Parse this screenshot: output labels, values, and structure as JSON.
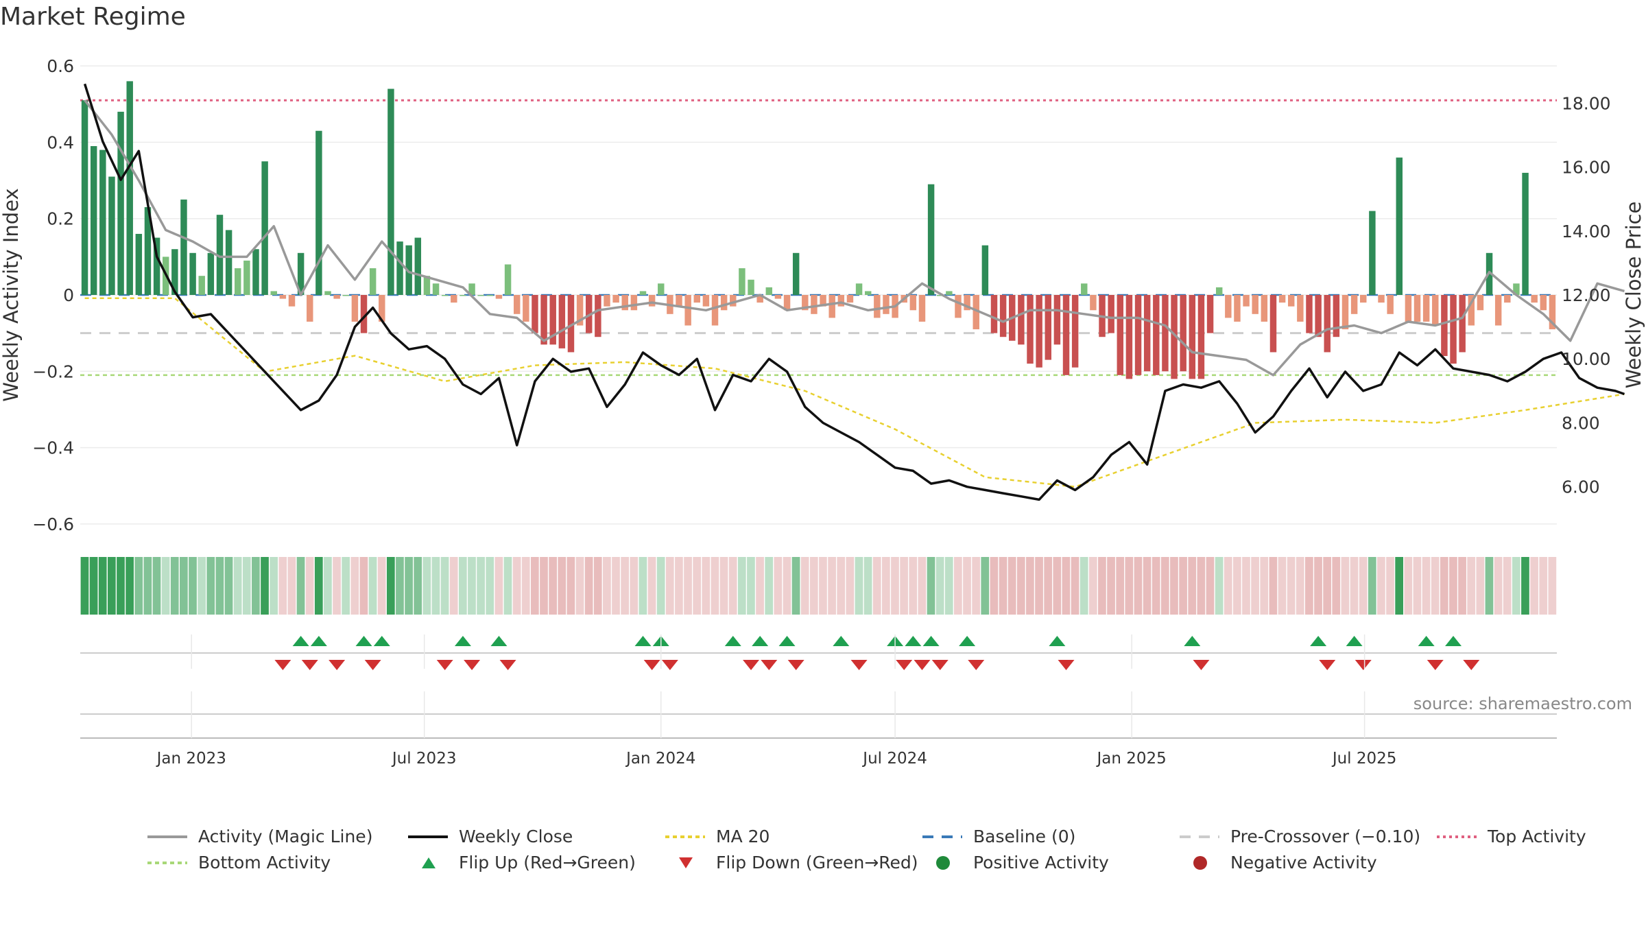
{
  "title": "Market Regime",
  "source": "source: sharemaestro.com",
  "colors": {
    "strong_green": "#2e8b57",
    "light_green": "#7cbf7c",
    "strong_red": "#c85050",
    "light_red": "#e8967a",
    "magic_line": "#999999",
    "close_line": "#111111",
    "ma20": "#e8d030",
    "baseline": "#3a7ab8",
    "precross": "#cccccc",
    "top": "#e06080",
    "bottom": "#a8d878",
    "flip_up": "#1fa050",
    "flip_down": "#d03030"
  },
  "legend": [
    {
      "key": "magic",
      "label": "Activity (Magic Line)"
    },
    {
      "key": "close",
      "label": "Weekly Close"
    },
    {
      "key": "ma20",
      "label": "MA 20"
    },
    {
      "key": "baseline",
      "label": "Baseline (0)"
    },
    {
      "key": "precross",
      "label": "Pre-Crossover (−0.10)"
    },
    {
      "key": "top",
      "label": "Top Activity"
    },
    {
      "key": "bottom",
      "label": "Bottom Activity"
    },
    {
      "key": "flipup",
      "label": "Flip Up (Red→Green)"
    },
    {
      "key": "flipdown",
      "label": "Flip Down (Green→Red)"
    },
    {
      "key": "pos",
      "label": "Positive Activity"
    },
    {
      "key": "neg",
      "label": "Negative Activity"
    }
  ],
  "chart_data": {
    "type": "bar",
    "start_date": "2022-10-10",
    "ylabel": "Weekly Activity Index",
    "ylabel_right": "Weekly Close Price",
    "ylim": [
      -0.62,
      0.62
    ],
    "ylim_right": [
      4.6,
      19.4
    ],
    "yticks": [
      0.6,
      0.4,
      0.2,
      0,
      -0.2,
      -0.4,
      -0.6
    ],
    "ytick_labels": [
      "0.6",
      "0.4",
      "0.2",
      "0",
      "−0.2",
      "−0.4",
      "−0.6"
    ],
    "yticks_right": [
      18,
      16,
      14,
      12,
      10,
      8,
      6
    ],
    "ytick_labels_right": [
      "18.00",
      "16.00",
      "14.00",
      "12.00",
      "10.00",
      "8.00",
      "6.00"
    ],
    "xticks": [
      {
        "label": "Jan 2023",
        "date": "2023-01-01"
      },
      {
        "label": "Jul 2023",
        "date": "2023-07-01"
      },
      {
        "label": "Jan 2024",
        "date": "2024-01-01"
      },
      {
        "label": "Jul 2024",
        "date": "2024-07-01"
      },
      {
        "label": "Jan 2025",
        "date": "2025-01-01"
      },
      {
        "label": "Jul 2025",
        "date": "2025-07-01"
      }
    ],
    "grid": true,
    "legend_position": "bottom",
    "reference_lines": {
      "baseline": 0,
      "pre_crossover": -0.1,
      "top_activity": 0.51,
      "bottom_activity": -0.21
    },
    "series": [
      {
        "name": "Activity (Magic Line)",
        "x": [
          0,
          3,
          6,
          9,
          12,
          15,
          18,
          21,
          24,
          27,
          30,
          33,
          36,
          39,
          42,
          45,
          48,
          51,
          54,
          57,
          60,
          63,
          66,
          69,
          72,
          75,
          78,
          81,
          84,
          87,
          90,
          93,
          96,
          99,
          102,
          105,
          108,
          111,
          114,
          117,
          120,
          123,
          126,
          129,
          132,
          135,
          138,
          141,
          144,
          147,
          150,
          153,
          156,
          159,
          162,
          165,
          168,
          171
        ],
        "values": [
          0.51,
          0.42,
          0.3,
          0.17,
          0.14,
          0.1,
          0.1,
          0.18,
          0.0,
          0.13,
          0.04,
          0.14,
          0.06,
          0.04,
          0.02,
          -0.05,
          -0.06,
          -0.12,
          -0.08,
          -0.04,
          -0.03,
          -0.02,
          -0.03,
          -0.04,
          -0.02,
          0.0,
          -0.04,
          -0.03,
          -0.02,
          -0.04,
          -0.03,
          0.03,
          -0.01,
          -0.04,
          -0.07,
          -0.04,
          -0.04,
          -0.05,
          -0.06,
          -0.06,
          -0.08,
          -0.15,
          -0.16,
          -0.17,
          -0.21,
          -0.13,
          -0.09,
          -0.08,
          -0.1,
          -0.07,
          -0.08,
          -0.06,
          0.06,
          0.0,
          -0.05,
          -0.12,
          0.03,
          0.01
        ]
      },
      {
        "name": "Weekly Close",
        "x": [
          0,
          2,
          4,
          6,
          8,
          10,
          12,
          14,
          16,
          18,
          20,
          22,
          24,
          26,
          28,
          30,
          32,
          34,
          36,
          38,
          40,
          42,
          44,
          46,
          48,
          50,
          52,
          54,
          56,
          58,
          60,
          62,
          64,
          66,
          68,
          70,
          72,
          74,
          76,
          78,
          80,
          82,
          84,
          86,
          88,
          90,
          92,
          94,
          96,
          98,
          100,
          102,
          104,
          106,
          108,
          110,
          112,
          114,
          116,
          118,
          120,
          122,
          124,
          126,
          128,
          130,
          132,
          134,
          136,
          138,
          140,
          142,
          144,
          146,
          148,
          150,
          152,
          154,
          156,
          158,
          160,
          162,
          164,
          166,
          168,
          170,
          171
        ],
        "values": [
          18.6,
          16.8,
          15.6,
          16.5,
          13.2,
          12.1,
          11.3,
          11.4,
          10.8,
          10.2,
          9.6,
          9.0,
          8.4,
          8.7,
          9.5,
          11.0,
          11.6,
          10.8,
          10.3,
          10.4,
          10.0,
          9.2,
          8.9,
          9.4,
          7.3,
          9.3,
          10.0,
          9.6,
          9.7,
          8.5,
          9.2,
          10.2,
          9.8,
          9.5,
          10.0,
          8.4,
          9.5,
          9.3,
          10.0,
          9.6,
          8.5,
          8.0,
          7.7,
          7.4,
          7.0,
          6.6,
          6.5,
          6.1,
          6.2,
          6.0,
          5.9,
          5.8,
          5.7,
          5.6,
          6.2,
          5.9,
          6.3,
          7.0,
          7.4,
          6.7,
          9.0,
          9.2,
          9.1,
          9.3,
          8.6,
          7.7,
          8.2,
          9.0,
          9.7,
          8.8,
          9.6,
          9.0,
          9.2,
          10.2,
          9.8,
          10.3,
          9.7,
          9.6,
          9.5,
          9.3,
          9.6,
          10.0,
          10.2,
          9.4,
          9.1,
          9.0,
          8.9
        ]
      },
      {
        "name": "MA 20",
        "x": [
          0,
          10,
          20,
          30,
          40,
          50,
          60,
          70,
          80,
          90,
          100,
          110,
          120,
          130,
          140,
          150,
          160,
          171
        ],
        "values": [
          11.9,
          11.9,
          9.6,
          10.1,
          9.3,
          9.8,
          9.9,
          9.7,
          9.0,
          7.8,
          6.3,
          6.0,
          7.0,
          8.0,
          8.1,
          8.0,
          8.4,
          8.9
        ]
      }
    ],
    "bars": [
      0.51,
      0.39,
      0.38,
      0.31,
      0.48,
      0.56,
      0.16,
      0.23,
      0.15,
      0.1,
      0.12,
      0.25,
      0.11,
      0.05,
      0.11,
      0.21,
      0.17,
      0.07,
      0.09,
      0.12,
      0.35,
      0.01,
      -0.01,
      -0.03,
      0.11,
      -0.07,
      0.43,
      0.01,
      -0.01,
      0.0,
      -0.07,
      -0.1,
      0.07,
      -0.07,
      0.54,
      0.14,
      0.13,
      0.15,
      0.05,
      0.03,
      0.0,
      -0.02,
      0.0,
      0.03,
      0.0,
      0.0,
      -0.01,
      0.08,
      -0.05,
      -0.07,
      -0.1,
      -0.13,
      -0.13,
      -0.14,
      -0.15,
      -0.08,
      -0.1,
      -0.11,
      -0.03,
      -0.02,
      -0.04,
      -0.04,
      0.01,
      -0.03,
      0.03,
      -0.05,
      -0.03,
      -0.08,
      -0.02,
      -0.03,
      -0.08,
      -0.04,
      -0.03,
      0.07,
      0.04,
      -0.02,
      0.02,
      -0.01,
      -0.04,
      0.11,
      -0.04,
      -0.05,
      -0.03,
      -0.06,
      -0.03,
      -0.02,
      0.03,
      0.01,
      -0.06,
      -0.05,
      -0.06,
      -0.02,
      -0.04,
      -0.07,
      0.29,
      0.0,
      0.01,
      -0.06,
      -0.04,
      -0.09,
      0.13,
      -0.1,
      -0.11,
      -0.12,
      -0.13,
      -0.18,
      -0.19,
      -0.17,
      -0.13,
      -0.21,
      -0.19,
      0.03,
      -0.04,
      -0.11,
      -0.1,
      -0.21,
      -0.22,
      -0.21,
      -0.2,
      -0.21,
      -0.2,
      -0.22,
      -0.2,
      -0.22,
      -0.22,
      -0.1,
      0.02,
      -0.06,
      -0.07,
      -0.03,
      -0.05,
      -0.07,
      -0.15,
      -0.02,
      -0.03,
      -0.07,
      -0.1,
      -0.11,
      -0.15,
      -0.11,
      -0.09,
      -0.05,
      -0.02,
      0.22,
      -0.02,
      -0.05,
      0.36,
      -0.07,
      -0.07,
      -0.07,
      -0.08,
      -0.16,
      -0.18,
      -0.15,
      -0.08,
      -0.04,
      0.11,
      -0.08,
      -0.02,
      0.03,
      0.32,
      -0.02,
      -0.04,
      -0.09
    ],
    "flip_up_weeks": [
      24,
      26,
      31,
      33,
      42,
      46,
      62,
      64,
      72,
      75,
      78,
      84,
      90,
      92,
      94,
      98,
      108,
      123,
      137,
      141,
      149,
      152
    ],
    "flip_down_weeks": [
      22,
      25,
      28,
      32,
      40,
      43,
      47,
      63,
      65,
      74,
      76,
      79,
      86,
      91,
      93,
      95,
      99,
      109,
      124,
      138,
      142,
      150,
      154
    ]
  }
}
